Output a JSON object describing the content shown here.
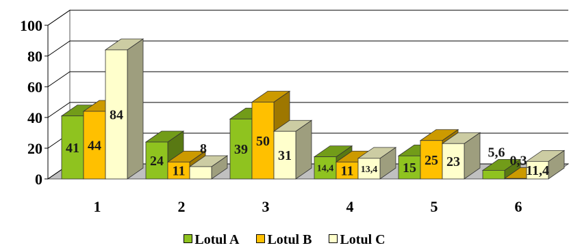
{
  "chart_data": {
    "type": "bar",
    "categories": [
      "1",
      "2",
      "3",
      "4",
      "5",
      "6"
    ],
    "series": [
      {
        "name": "Lotul A",
        "color": "#8fc31f",
        "values": [
          41,
          24,
          39,
          14.4,
          15,
          5.6
        ],
        "labels": [
          "41",
          "24",
          "39",
          "14,4",
          "15",
          "5,6"
        ]
      },
      {
        "name": "Lotul B",
        "color": "#ffc000",
        "values": [
          44,
          11,
          50,
          11,
          25,
          0.3
        ],
        "labels": [
          "44",
          "11",
          "50",
          "11",
          "25",
          "0,3"
        ]
      },
      {
        "name": "Lotul C",
        "color": "#ffffcc",
        "values": [
          84,
          8,
          31,
          13.4,
          23,
          11.4
        ],
        "labels": [
          "84",
          "8",
          "31",
          "13,4",
          "23",
          "11,4"
        ]
      }
    ],
    "yticks": [
      "0",
      "20",
      "40",
      "60",
      "80",
      "100"
    ],
    "ylim": [
      0,
      100
    ],
    "grid": true,
    "legend": "bottom",
    "style": "3d-clustered-column"
  }
}
